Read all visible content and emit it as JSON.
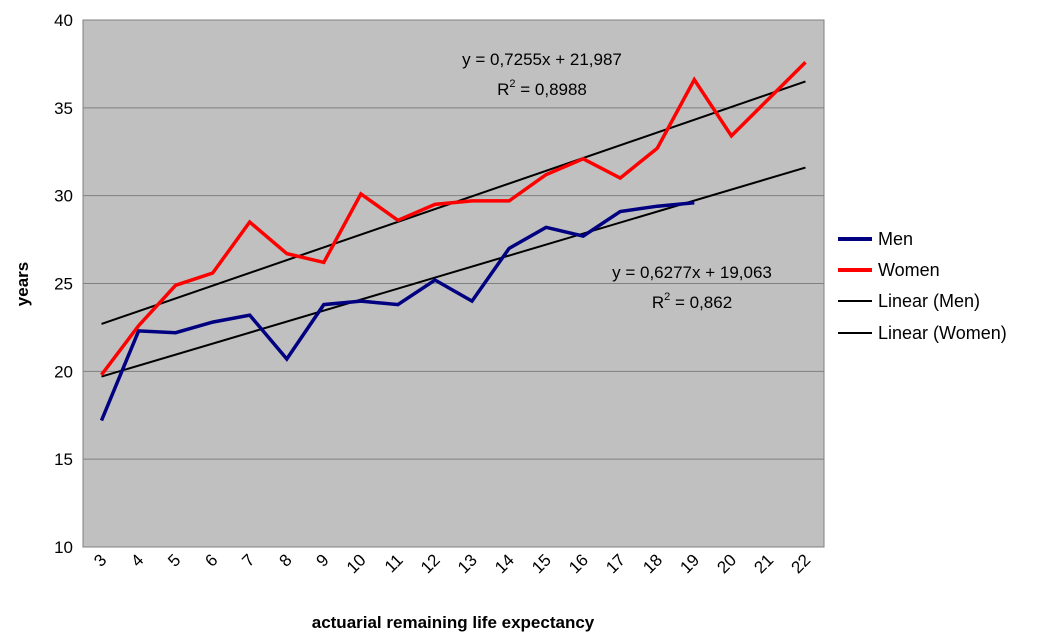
{
  "chart_data": {
    "type": "line",
    "title": "",
    "xlabel": "actuarial remaining life expectancy",
    "ylabel": "years",
    "ylim": [
      10,
      40
    ],
    "yticks": [
      10,
      15,
      20,
      25,
      30,
      35,
      40
    ],
    "grid": "horizontal",
    "plot_background": "#c0c0c0",
    "legend_position": "right",
    "categories": [
      "3",
      "4",
      "5",
      "6",
      "7",
      "8",
      "9",
      "10",
      "11",
      "12",
      "13",
      "14",
      "15",
      "16",
      "17",
      "18",
      "19",
      "20",
      "21",
      "22"
    ],
    "x_points": [
      3.5,
      4.5,
      5.5,
      6.5,
      7.5,
      8.5,
      9.5,
      10.5,
      11.5,
      12.5,
      13.5,
      14.5,
      15.5,
      16.5,
      17.5,
      18.5,
      19.5,
      20.5,
      21.5,
      22.5
    ],
    "series": [
      {
        "name": "Men",
        "color": "#000080",
        "values": [
          17.2,
          22.3,
          22.2,
          22.8,
          23.2,
          20.7,
          23.8,
          24.0,
          23.8,
          25.2,
          24.0,
          27.0,
          28.2,
          27.7,
          29.1,
          29.4,
          29.6,
          null,
          null,
          null
        ]
      },
      {
        "name": "Women",
        "color": "#ff0000",
        "values": [
          19.8,
          22.6,
          24.9,
          25.6,
          28.5,
          26.7,
          26.2,
          30.1,
          28.6,
          29.5,
          29.7,
          29.7,
          31.2,
          32.1,
          31.0,
          32.7,
          36.6,
          33.4,
          35.5,
          37.6
        ]
      }
    ],
    "trendlines": [
      {
        "name": "Linear (Men)",
        "color": "#000000",
        "x_range": [
          3.5,
          22.5
        ],
        "y_range": [
          19.7,
          31.6
        ],
        "equation": "y = 0,6277x + 19,063",
        "r2_prefix": "R",
        "r2_sup": "2",
        "r2_value": " = 0,862"
      },
      {
        "name": "Linear (Women)",
        "color": "#000000",
        "x_range": [
          3.5,
          22.5
        ],
        "y_range": [
          22.7,
          36.5
        ],
        "equation": "y = 0,7255x + 21,987",
        "r2_prefix": "R",
        "r2_sup": "2",
        "r2_value": " = 0,8988"
      }
    ],
    "legend": [
      "Men",
      "Women",
      "Linear (Men)",
      "Linear (Women)"
    ]
  }
}
